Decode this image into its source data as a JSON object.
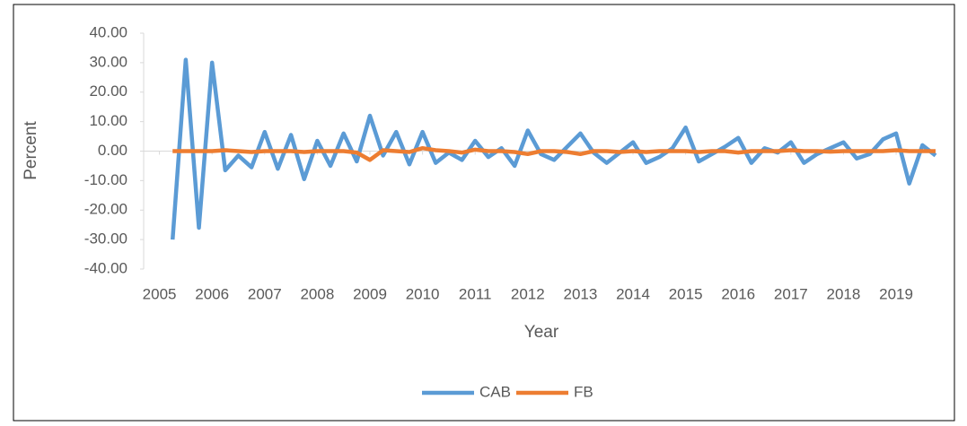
{
  "chart_data": {
    "type": "line",
    "x_label": "Year",
    "y_label": "Percent",
    "x": [
      2005.25,
      2005.5,
      2005.75,
      2006,
      2006.25,
      2006.5,
      2006.75,
      2007,
      2007.25,
      2007.5,
      2007.75,
      2008,
      2008.25,
      2008.5,
      2008.75,
      2009,
      2009.25,
      2009.5,
      2009.75,
      2010,
      2010.25,
      2010.5,
      2010.75,
      2011,
      2011.25,
      2011.5,
      2011.75,
      2012,
      2012.25,
      2012.5,
      2012.75,
      2013,
      2013.25,
      2013.5,
      2013.75,
      2014,
      2014.25,
      2014.5,
      2014.75,
      2015,
      2015.25,
      2015.5,
      2015.75,
      2016,
      2016.25,
      2016.5,
      2016.75,
      2017,
      2017.25,
      2017.5,
      2017.75,
      2018,
      2018.25,
      2018.5,
      2018.75,
      2019,
      2019.25,
      2019.5,
      2019.75
    ],
    "series": [
      {
        "name": "CAB",
        "color": "#5b9bd5",
        "values": [
          -30,
          31,
          -26,
          30,
          -6.5,
          -1.5,
          -5.5,
          6.5,
          -6,
          5.5,
          -9.5,
          3.5,
          -5,
          6,
          -3.5,
          12,
          -1.5,
          6.5,
          -4.5,
          6.5,
          -4,
          -0.5,
          -3,
          3.5,
          -2,
          1,
          -5,
          7,
          -1,
          -3,
          1.5,
          6,
          -0.5,
          -4,
          -0.5,
          3,
          -4,
          -2,
          1,
          8,
          -3.5,
          -1,
          1.5,
          4.5,
          -4,
          1,
          -0.5,
          3,
          -4,
          -1,
          1,
          3,
          -2.5,
          -1,
          4,
          6,
          -11,
          2,
          -1.5
        ]
      },
      {
        "name": "FB",
        "color": "#ed7d31",
        "values": [
          0,
          0,
          0,
          0,
          0.3,
          0,
          -0.3,
          0,
          0,
          0,
          -0.3,
          0,
          0,
          0,
          -0.5,
          -3,
          0.3,
          0,
          -0.3,
          1,
          0.3,
          0,
          -0.5,
          0.5,
          0,
          0,
          -0.3,
          -1,
          0,
          0,
          -0.3,
          -1,
          0,
          0,
          -0.3,
          0,
          -0.3,
          0,
          0,
          0,
          -0.3,
          0,
          0,
          -0.5,
          0,
          0,
          0,
          0.3,
          0,
          0,
          -0.2,
          0,
          0,
          0,
          0,
          0.3,
          0,
          0,
          0
        ]
      }
    ],
    "xlim": [
      2004.7,
      2019.75
    ],
    "xticks": [
      2005,
      2006,
      2007,
      2008,
      2009,
      2010,
      2011,
      2012,
      2013,
      2014,
      2015,
      2016,
      2017,
      2018,
      2019
    ],
    "ylim": [
      -40,
      40
    ],
    "yticks": [
      {
        "value": -40,
        "label": "-40.00"
      },
      {
        "value": -30,
        "label": "-30.00"
      },
      {
        "value": -20,
        "label": "-20.00"
      },
      {
        "value": -10,
        "label": "-10.00"
      },
      {
        "value": 0,
        "label": "0.00"
      },
      {
        "value": 10,
        "label": "10.00"
      },
      {
        "value": 20,
        "label": "20.00"
      },
      {
        "value": 30,
        "label": "30.00"
      },
      {
        "value": 40,
        "label": "40.00"
      }
    ],
    "legend": "bottom"
  }
}
